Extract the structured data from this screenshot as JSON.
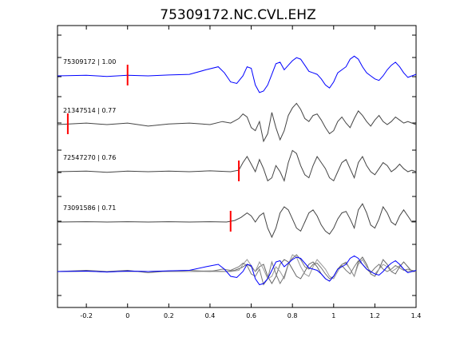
{
  "chart_data": {
    "type": "line",
    "title": "75309172.NC.CVL.EHZ",
    "xlabel": "",
    "ylabel": "",
    "xlim": [
      -0.34,
      1.4
    ],
    "x_ticks": [
      -0.2,
      0,
      0.2,
      0.4,
      0.6,
      0.8,
      1,
      1.2,
      1.4
    ],
    "x_tick_labels": [
      "-0.2",
      "0",
      "0.2",
      "0.4",
      "0.6",
      "0.8",
      "1",
      "1.2",
      "1.4"
    ],
    "grid": false,
    "series": [
      {
        "name": "75309172 | 1.00",
        "color": "#0000ff",
        "pick": 0.0,
        "x": [
          -0.34,
          -0.2,
          -0.1,
          0.0,
          0.1,
          0.2,
          0.3,
          0.38,
          0.44,
          0.47,
          0.5,
          0.53,
          0.56,
          0.58,
          0.6,
          0.62,
          0.64,
          0.66,
          0.68,
          0.7,
          0.72,
          0.74,
          0.76,
          0.78,
          0.8,
          0.82,
          0.84,
          0.86,
          0.88,
          0.9,
          0.92,
          0.94,
          0.96,
          0.98,
          1.0,
          1.02,
          1.04,
          1.06,
          1.08,
          1.1,
          1.12,
          1.14,
          1.16,
          1.18,
          1.2,
          1.22,
          1.24,
          1.26,
          1.28,
          1.3,
          1.32,
          1.34,
          1.36,
          1.38,
          1.4
        ],
        "y": [
          0.0,
          0.02,
          -0.02,
          0.02,
          0.0,
          0.03,
          0.05,
          0.2,
          0.3,
          0.1,
          -0.2,
          -0.25,
          0.0,
          0.3,
          0.25,
          -0.3,
          -0.55,
          -0.5,
          -0.3,
          0.05,
          0.4,
          0.45,
          0.2,
          0.35,
          0.5,
          0.6,
          0.55,
          0.35,
          0.15,
          0.1,
          0.05,
          -0.1,
          -0.3,
          -0.4,
          -0.2,
          0.1,
          0.2,
          0.3,
          0.55,
          0.65,
          0.55,
          0.3,
          0.1,
          0.0,
          -0.1,
          -0.15,
          0.0,
          0.2,
          0.35,
          0.45,
          0.3,
          0.1,
          -0.05,
          0.0,
          0.05
        ]
      },
      {
        "name": "21347514 | 0.77",
        "color": "#444444",
        "pick": -0.29,
        "x": [
          -0.34,
          -0.2,
          -0.1,
          0.0,
          0.1,
          0.2,
          0.3,
          0.4,
          0.46,
          0.5,
          0.54,
          0.56,
          0.58,
          0.6,
          0.62,
          0.64,
          0.66,
          0.68,
          0.7,
          0.72,
          0.74,
          0.76,
          0.78,
          0.8,
          0.82,
          0.84,
          0.86,
          0.88,
          0.9,
          0.92,
          0.94,
          0.96,
          0.98,
          1.0,
          1.02,
          1.04,
          1.06,
          1.08,
          1.1,
          1.12,
          1.14,
          1.16,
          1.18,
          1.2,
          1.22,
          1.24,
          1.26,
          1.28,
          1.3,
          1.32,
          1.34,
          1.36,
          1.38,
          1.4
        ],
        "y": [
          0.0,
          0.05,
          0.0,
          0.05,
          -0.05,
          0.02,
          0.05,
          0.0,
          0.1,
          0.05,
          0.2,
          0.35,
          0.25,
          -0.1,
          -0.2,
          0.1,
          -0.55,
          -0.3,
          0.4,
          -0.1,
          -0.5,
          -0.2,
          0.3,
          0.55,
          0.7,
          0.5,
          0.2,
          0.1,
          0.3,
          0.35,
          0.15,
          -0.1,
          -0.3,
          -0.2,
          0.1,
          0.25,
          0.05,
          -0.1,
          0.2,
          0.45,
          0.3,
          0.1,
          -0.05,
          0.15,
          0.3,
          0.1,
          0.0,
          0.1,
          0.25,
          0.15,
          0.05,
          0.1,
          0.05,
          0.0
        ]
      },
      {
        "name": "72547270 | 0.76",
        "color": "#444444",
        "pick": 0.54,
        "x": [
          -0.34,
          -0.2,
          -0.1,
          0.0,
          0.1,
          0.2,
          0.3,
          0.4,
          0.5,
          0.54,
          0.56,
          0.58,
          0.6,
          0.62,
          0.64,
          0.66,
          0.68,
          0.7,
          0.72,
          0.74,
          0.76,
          0.78,
          0.8,
          0.82,
          0.84,
          0.86,
          0.88,
          0.9,
          0.92,
          0.94,
          0.96,
          0.98,
          1.0,
          1.02,
          1.04,
          1.06,
          1.08,
          1.1,
          1.12,
          1.14,
          1.16,
          1.18,
          1.2,
          1.22,
          1.24,
          1.26,
          1.28,
          1.3,
          1.32,
          1.34,
          1.36,
          1.38,
          1.4
        ],
        "y": [
          0.0,
          0.02,
          -0.02,
          0.02,
          0.0,
          0.02,
          0.0,
          0.03,
          0.0,
          0.05,
          0.3,
          0.5,
          0.25,
          0.0,
          0.4,
          0.1,
          -0.3,
          -0.2,
          0.2,
          0.0,
          -0.3,
          0.3,
          0.7,
          0.6,
          0.2,
          -0.1,
          -0.2,
          0.2,
          0.5,
          0.3,
          0.1,
          -0.2,
          -0.3,
          0.0,
          0.3,
          0.4,
          0.1,
          -0.2,
          0.3,
          0.5,
          0.2,
          0.0,
          -0.1,
          0.1,
          0.3,
          0.2,
          0.0,
          0.1,
          0.25,
          0.1,
          0.0,
          0.05,
          0.0
        ]
      },
      {
        "name": "73091586 | 0.71",
        "color": "#444444",
        "pick": 0.5,
        "x": [
          -0.34,
          -0.2,
          -0.1,
          0.0,
          0.1,
          0.2,
          0.3,
          0.4,
          0.48,
          0.52,
          0.55,
          0.58,
          0.6,
          0.62,
          0.64,
          0.66,
          0.68,
          0.7,
          0.72,
          0.74,
          0.76,
          0.78,
          0.8,
          0.82,
          0.84,
          0.86,
          0.88,
          0.9,
          0.92,
          0.94,
          0.96,
          0.98,
          1.0,
          1.02,
          1.04,
          1.06,
          1.08,
          1.1,
          1.12,
          1.14,
          1.16,
          1.18,
          1.2,
          1.22,
          1.24,
          1.26,
          1.28,
          1.3,
          1.32,
          1.34,
          1.36,
          1.38,
          1.4
        ],
        "y": [
          0.0,
          0.01,
          0.0,
          0.01,
          0.0,
          0.01,
          0.0,
          0.01,
          0.0,
          0.05,
          0.15,
          0.3,
          0.2,
          0.0,
          0.2,
          0.3,
          -0.2,
          -0.5,
          -0.2,
          0.3,
          0.5,
          0.4,
          0.1,
          -0.2,
          -0.3,
          0.0,
          0.3,
          0.4,
          0.2,
          -0.1,
          -0.3,
          -0.4,
          -0.2,
          0.1,
          0.3,
          0.35,
          0.1,
          -0.2,
          0.4,
          0.6,
          0.3,
          -0.1,
          -0.2,
          0.1,
          0.5,
          0.3,
          0.0,
          -0.1,
          0.2,
          0.4,
          0.2,
          0.0,
          0.0
        ]
      }
    ],
    "overlay_panel": "all traces overlaid"
  }
}
